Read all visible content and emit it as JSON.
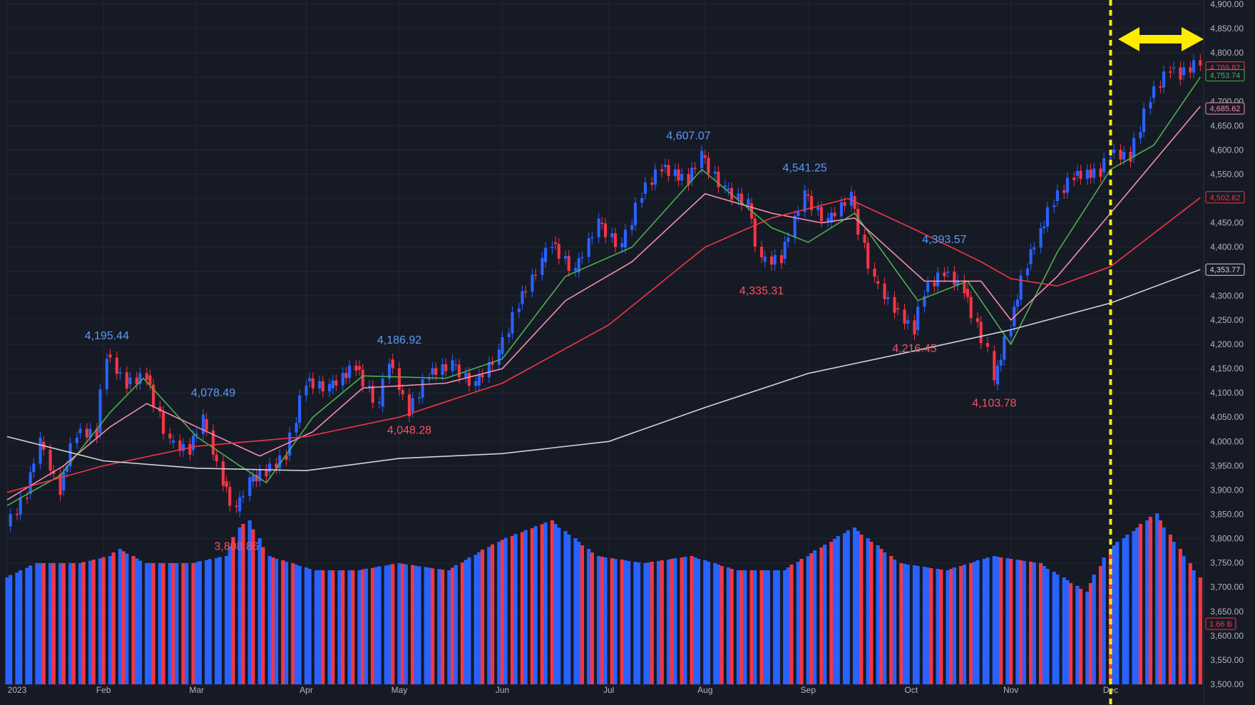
{
  "colors": {
    "background": "#161a25",
    "grid": "#232735",
    "up": "#2962ff",
    "down": "#f23645",
    "ma_fast": "#4caf50",
    "ma_mid": "#f48fb1",
    "ma_slow": "#f23645",
    "ma_long": "#d1d4dc",
    "annotation_high": "#5b9cf6",
    "annotation_low": "#f7525f",
    "marker": "#ffeb00",
    "axis_text": "#b2b5be"
  },
  "chart_data": {
    "type": "candlestick",
    "title": "",
    "xlabel": "",
    "ylabel": "",
    "x_range": [
      "2023-01-03",
      "2023-12-29"
    ],
    "ylim": [
      3500,
      4900
    ],
    "grid": true,
    "y_ticks": [
      "3,500.00",
      "3,550.00",
      "3,600.00",
      "3,650.00",
      "3,700.00",
      "3,750.00",
      "3,800.00",
      "3,850.00",
      "3,900.00",
      "3,950.00",
      "4,000.00",
      "4,050.00",
      "4,100.00",
      "4,150.00",
      "4,200.00",
      "4,250.00",
      "4,300.00",
      "4,350.00",
      "4,400.00",
      "4,450.00",
      "4,500.00",
      "4,550.00",
      "4,600.00",
      "4,650.00",
      "4,700.00",
      "4,750.00",
      "4,800.00",
      "4,850.00",
      "4,900.00"
    ],
    "x_ticks": [
      {
        "label": "2023",
        "date": "2023-01-03"
      },
      {
        "label": "Feb",
        "date": "2023-02-01"
      },
      {
        "label": "Mar",
        "date": "2023-03-01"
      },
      {
        "label": "Apr",
        "date": "2023-04-03"
      },
      {
        "label": "May",
        "date": "2023-05-01"
      },
      {
        "label": "Jun",
        "date": "2023-06-01"
      },
      {
        "label": "Jul",
        "date": "2023-07-03"
      },
      {
        "label": "Aug",
        "date": "2023-08-01"
      },
      {
        "label": "Sep",
        "date": "2023-09-01"
      },
      {
        "label": "Oct",
        "date": "2023-10-02"
      },
      {
        "label": "Nov",
        "date": "2023-11-01"
      },
      {
        "label": "Dec",
        "date": "2023-12-01"
      }
    ],
    "price_series": [
      {
        "date": "2023-01-03",
        "close": 3825
      },
      {
        "date": "2023-01-09",
        "close": 3892
      },
      {
        "date": "2023-01-13",
        "close": 3999
      },
      {
        "date": "2023-01-19",
        "close": 3899
      },
      {
        "date": "2023-01-24",
        "close": 4017
      },
      {
        "date": "2023-01-30",
        "close": 4017
      },
      {
        "date": "2023-02-02",
        "close": 4179
      },
      {
        "date": "2023-02-08",
        "close": 4118
      },
      {
        "date": "2023-02-14",
        "close": 4136
      },
      {
        "date": "2023-02-21",
        "close": 3997
      },
      {
        "date": "2023-02-27",
        "close": 3982
      },
      {
        "date": "2023-03-03",
        "close": 4046
      },
      {
        "date": "2023-03-09",
        "close": 3918
      },
      {
        "date": "2023-03-13",
        "close": 3856
      },
      {
        "date": "2023-03-17",
        "close": 3917
      },
      {
        "date": "2023-03-22",
        "close": 3937
      },
      {
        "date": "2023-03-28",
        "close": 3971
      },
      {
        "date": "2023-04-03",
        "close": 4124
      },
      {
        "date": "2023-04-10",
        "close": 4109
      },
      {
        "date": "2023-04-18",
        "close": 4155
      },
      {
        "date": "2023-04-25",
        "close": 4072
      },
      {
        "date": "2023-04-28",
        "close": 4169
      },
      {
        "date": "2023-05-04",
        "close": 4061
      },
      {
        "date": "2023-05-10",
        "close": 4138
      },
      {
        "date": "2023-05-17",
        "close": 4158
      },
      {
        "date": "2023-05-24",
        "close": 4115
      },
      {
        "date": "2023-05-31",
        "close": 4180
      },
      {
        "date": "2023-06-06",
        "close": 4283
      },
      {
        "date": "2023-06-13",
        "close": 4369
      },
      {
        "date": "2023-06-16",
        "close": 4410
      },
      {
        "date": "2023-06-23",
        "close": 4348
      },
      {
        "date": "2023-06-30",
        "close": 4450
      },
      {
        "date": "2023-07-07",
        "close": 4399
      },
      {
        "date": "2023-07-13",
        "close": 4510
      },
      {
        "date": "2023-07-19",
        "close": 4565
      },
      {
        "date": "2023-07-27",
        "close": 4537
      },
      {
        "date": "2023-07-31",
        "close": 4589
      },
      {
        "date": "2023-08-07",
        "close": 4518
      },
      {
        "date": "2023-08-14",
        "close": 4490
      },
      {
        "date": "2023-08-18",
        "close": 4370
      },
      {
        "date": "2023-08-24",
        "close": 4376
      },
      {
        "date": "2023-08-31",
        "close": 4508
      },
      {
        "date": "2023-09-07",
        "close": 4451
      },
      {
        "date": "2023-09-14",
        "close": 4505
      },
      {
        "date": "2023-09-21",
        "close": 4330
      },
      {
        "date": "2023-09-27",
        "close": 4274
      },
      {
        "date": "2023-10-03",
        "close": 4229
      },
      {
        "date": "2023-10-06",
        "close": 4308
      },
      {
        "date": "2023-10-12",
        "close": 4349
      },
      {
        "date": "2023-10-18",
        "close": 4314
      },
      {
        "date": "2023-10-25",
        "close": 4186
      },
      {
        "date": "2023-10-27",
        "close": 4117
      },
      {
        "date": "2023-11-01",
        "close": 4237
      },
      {
        "date": "2023-11-06",
        "close": 4365
      },
      {
        "date": "2023-11-14",
        "close": 4495
      },
      {
        "date": "2023-11-20",
        "close": 4547
      },
      {
        "date": "2023-11-28",
        "close": 4554
      },
      {
        "date": "2023-12-01",
        "close": 4594
      },
      {
        "date": "2023-12-07",
        "close": 4585
      },
      {
        "date": "2023-12-13",
        "close": 4707
      },
      {
        "date": "2023-12-19",
        "close": 4768
      },
      {
        "date": "2023-12-22",
        "close": 4754
      },
      {
        "date": "2023-12-28",
        "close": 4783
      }
    ],
    "ma_series": [
      {
        "name": "",
        "color": "#4caf50",
        "points": [
          {
            "date": "2023-01-03",
            "value": 3868
          },
          {
            "date": "2023-01-19",
            "value": 3930
          },
          {
            "date": "2023-02-03",
            "value": 4060
          },
          {
            "date": "2023-02-13",
            "value": 4130
          },
          {
            "date": "2023-03-01",
            "value": 4010
          },
          {
            "date": "2023-03-14",
            "value": 3950
          },
          {
            "date": "2023-03-22",
            "value": 3915
          },
          {
            "date": "2023-04-05",
            "value": 4050
          },
          {
            "date": "2023-04-20",
            "value": 4135
          },
          {
            "date": "2023-05-15",
            "value": 4130
          },
          {
            "date": "2023-06-01",
            "value": 4170
          },
          {
            "date": "2023-06-20",
            "value": 4340
          },
          {
            "date": "2023-07-10",
            "value": 4400
          },
          {
            "date": "2023-07-31",
            "value": 4560
          },
          {
            "date": "2023-08-21",
            "value": 4440
          },
          {
            "date": "2023-09-01",
            "value": 4410
          },
          {
            "date": "2023-09-15",
            "value": 4470
          },
          {
            "date": "2023-10-04",
            "value": 4290
          },
          {
            "date": "2023-10-19",
            "value": 4330
          },
          {
            "date": "2023-11-01",
            "value": 4200
          },
          {
            "date": "2023-11-15",
            "value": 4390
          },
          {
            "date": "2023-12-01",
            "value": 4560
          },
          {
            "date": "2023-12-14",
            "value": 4610
          },
          {
            "date": "2023-12-28",
            "value": 4750
          }
        ]
      },
      {
        "name": "",
        "color": "#f48fb1",
        "points": [
          {
            "date": "2023-01-03",
            "value": 3880
          },
          {
            "date": "2023-01-20",
            "value": 3950
          },
          {
            "date": "2023-02-03",
            "value": 4030
          },
          {
            "date": "2023-02-14",
            "value": 4078
          },
          {
            "date": "2023-03-01",
            "value": 4030
          },
          {
            "date": "2023-03-20",
            "value": 3970
          },
          {
            "date": "2023-04-05",
            "value": 4020
          },
          {
            "date": "2023-04-20",
            "value": 4110
          },
          {
            "date": "2023-05-15",
            "value": 4120
          },
          {
            "date": "2023-06-01",
            "value": 4150
          },
          {
            "date": "2023-06-20",
            "value": 4290
          },
          {
            "date": "2023-07-10",
            "value": 4370
          },
          {
            "date": "2023-08-01",
            "value": 4510
          },
          {
            "date": "2023-08-21",
            "value": 4470
          },
          {
            "date": "2023-09-05",
            "value": 4450
          },
          {
            "date": "2023-09-15",
            "value": 4460
          },
          {
            "date": "2023-10-06",
            "value": 4330
          },
          {
            "date": "2023-10-23",
            "value": 4330
          },
          {
            "date": "2023-11-01",
            "value": 4250
          },
          {
            "date": "2023-11-15",
            "value": 4340
          },
          {
            "date": "2023-12-01",
            "value": 4470
          },
          {
            "date": "2023-12-28",
            "value": 4690
          }
        ]
      },
      {
        "name": "",
        "color": "#f23645",
        "points": [
          {
            "date": "2023-01-03",
            "value": 3895
          },
          {
            "date": "2023-02-01",
            "value": 3950
          },
          {
            "date": "2023-03-01",
            "value": 3990
          },
          {
            "date": "2023-04-03",
            "value": 4010
          },
          {
            "date": "2023-05-01",
            "value": 4050
          },
          {
            "date": "2023-06-01",
            "value": 4120
          },
          {
            "date": "2023-07-03",
            "value": 4240
          },
          {
            "date": "2023-08-01",
            "value": 4400
          },
          {
            "date": "2023-08-21",
            "value": 4460
          },
          {
            "date": "2023-09-13",
            "value": 4500
          },
          {
            "date": "2023-10-02",
            "value": 4440
          },
          {
            "date": "2023-10-23",
            "value": 4370
          },
          {
            "date": "2023-11-01",
            "value": 4335
          },
          {
            "date": "2023-11-15",
            "value": 4320
          },
          {
            "date": "2023-12-01",
            "value": 4360
          },
          {
            "date": "2023-12-28",
            "value": 4502
          }
        ]
      },
      {
        "name": "",
        "color": "#d1d4dc",
        "points": [
          {
            "date": "2023-01-03",
            "value": 4010
          },
          {
            "date": "2023-02-01",
            "value": 3960
          },
          {
            "date": "2023-03-01",
            "value": 3945
          },
          {
            "date": "2023-04-03",
            "value": 3940
          },
          {
            "date": "2023-05-01",
            "value": 3965
          },
          {
            "date": "2023-06-01",
            "value": 3975
          },
          {
            "date": "2023-07-03",
            "value": 4000
          },
          {
            "date": "2023-08-01",
            "value": 4070
          },
          {
            "date": "2023-09-01",
            "value": 4140
          },
          {
            "date": "2023-10-02",
            "value": 4185
          },
          {
            "date": "2023-11-01",
            "value": 4230
          },
          {
            "date": "2023-12-01",
            "value": 4285
          },
          {
            "date": "2023-12-28",
            "value": 4354
          }
        ]
      }
    ],
    "volume_series": [
      {
        "date": "2023-01-03",
        "value": 1.5
      },
      {
        "date": "2023-01-12",
        "value": 1.7
      },
      {
        "date": "2023-01-25",
        "value": 1.7
      },
      {
        "date": "2023-02-03",
        "value": 1.8
      },
      {
        "date": "2023-02-06",
        "value": 1.9
      },
      {
        "date": "2023-02-14",
        "value": 1.7
      },
      {
        "date": "2023-02-28",
        "value": 1.7
      },
      {
        "date": "2023-03-10",
        "value": 1.8
      },
      {
        "date": "2023-03-14",
        "value": 2.2
      },
      {
        "date": "2023-03-17",
        "value": 2.3
      },
      {
        "date": "2023-03-23",
        "value": 1.8
      },
      {
        "date": "2023-04-06",
        "value": 1.6
      },
      {
        "date": "2023-04-19",
        "value": 1.6
      },
      {
        "date": "2023-05-01",
        "value": 1.7
      },
      {
        "date": "2023-05-16",
        "value": 1.6
      },
      {
        "date": "2023-05-31",
        "value": 2.0
      },
      {
        "date": "2023-06-16",
        "value": 2.3
      },
      {
        "date": "2023-06-30",
        "value": 1.8
      },
      {
        "date": "2023-07-14",
        "value": 1.7
      },
      {
        "date": "2023-07-28",
        "value": 1.8
      },
      {
        "date": "2023-08-11",
        "value": 1.6
      },
      {
        "date": "2023-08-25",
        "value": 1.6
      },
      {
        "date": "2023-09-15",
        "value": 2.2
      },
      {
        "date": "2023-09-29",
        "value": 1.7
      },
      {
        "date": "2023-10-13",
        "value": 1.6
      },
      {
        "date": "2023-10-27",
        "value": 1.8
      },
      {
        "date": "2023-11-10",
        "value": 1.7
      },
      {
        "date": "2023-11-24",
        "value": 1.3
      },
      {
        "date": "2023-12-01",
        "value": 1.9
      },
      {
        "date": "2023-12-15",
        "value": 2.4
      },
      {
        "date": "2023-12-28",
        "value": 1.5
      }
    ]
  },
  "annotations": [
    {
      "text": "4,195.44",
      "date": "2023-02-02",
      "value": 4195.44,
      "kind": "high"
    },
    {
      "text": "4,078.49",
      "date": "2023-03-06",
      "value": 4078.49,
      "kind": "high"
    },
    {
      "text": "3,808.86",
      "date": "2023-03-13",
      "value": 3808.86,
      "kind": "low"
    },
    {
      "text": "4,186.92",
      "date": "2023-05-01",
      "value": 4186.92,
      "kind": "high"
    },
    {
      "text": "4,048.28",
      "date": "2023-05-04",
      "value": 4048.28,
      "kind": "low"
    },
    {
      "text": "4,607.07",
      "date": "2023-07-27",
      "value": 4607.07,
      "kind": "high"
    },
    {
      "text": "4,335.31",
      "date": "2023-08-18",
      "value": 4335.31,
      "kind": "low"
    },
    {
      "text": "4,541.25",
      "date": "2023-08-31",
      "value": 4541.25,
      "kind": "high"
    },
    {
      "text": "4,393.57",
      "date": "2023-10-12",
      "value": 4393.57,
      "kind": "high"
    },
    {
      "text": "4,216.45",
      "date": "2023-10-03",
      "value": 4216.45,
      "kind": "low"
    },
    {
      "text": "4,103.78",
      "date": "2023-10-27",
      "value": 4103.78,
      "kind": "low"
    }
  ],
  "price_labels": [
    {
      "text": "4,769.82",
      "value": 4769.82,
      "color": "#f23645"
    },
    {
      "text": "4,753.74",
      "value": 4753.74,
      "color": "#4caf50"
    },
    {
      "text": "4,685.62",
      "value": 4685.62,
      "color": "#f48fb1"
    },
    {
      "text": "4,502.62",
      "value": 4502.62,
      "color": "#f23645"
    },
    {
      "text": "4,353.77",
      "value": 4353.77,
      "color": "#d1d4dc"
    }
  ],
  "volume_label": {
    "text": "1.66 B",
    "color": "#f23645"
  },
  "marker": {
    "date": "2023-12-01",
    "arrow": "double-headed"
  }
}
